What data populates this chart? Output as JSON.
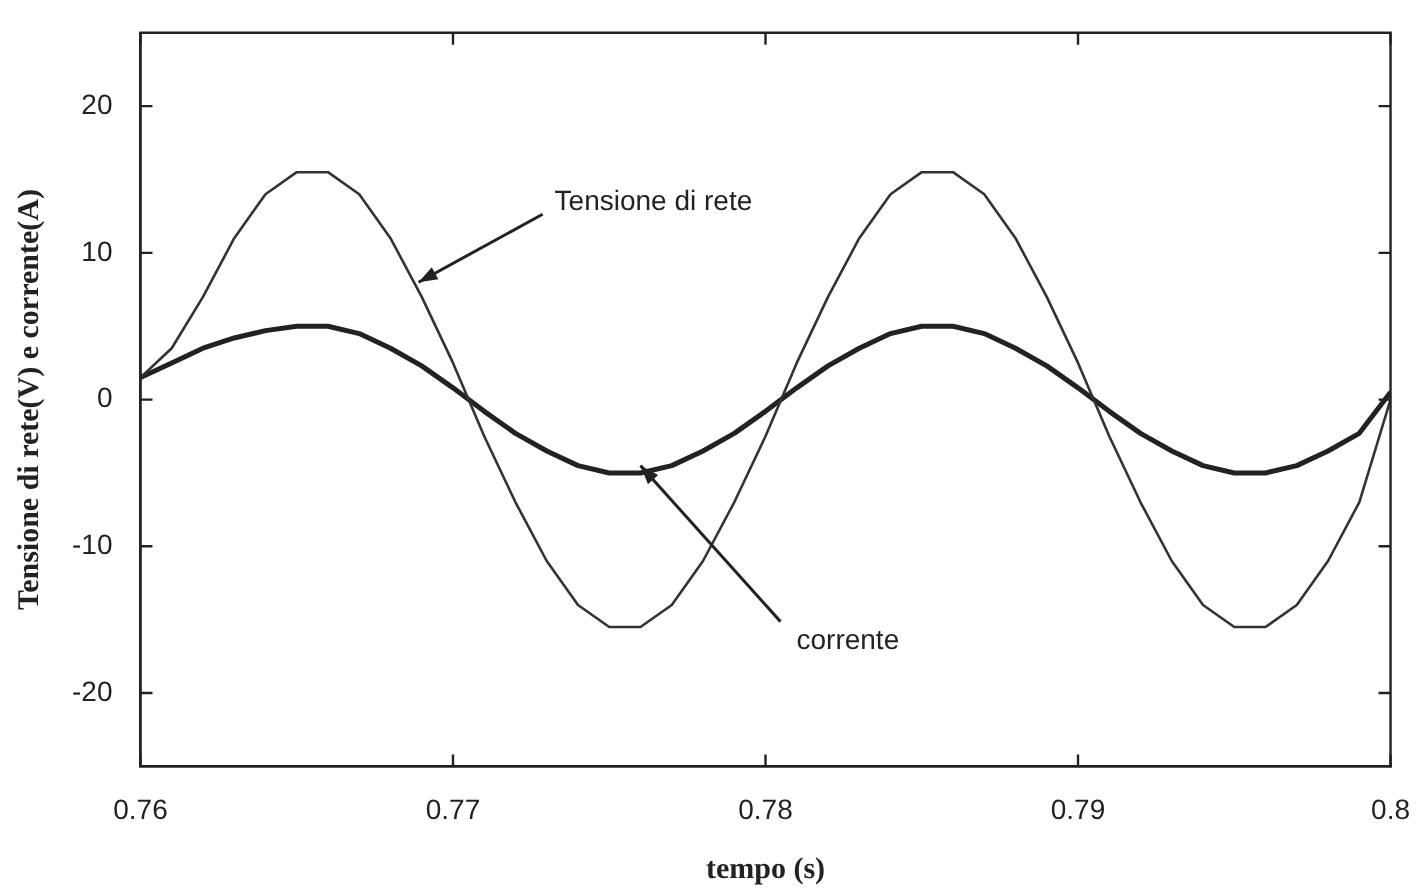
{
  "chart_data": {
    "type": "line",
    "xlabel": "tempo (s)",
    "ylabel": "Tensione di rete(V) e corrente(A)",
    "xlim": [
      0.76,
      0.8
    ],
    "xticks": [
      {
        "value": 0.76,
        "label": "0.76"
      },
      {
        "value": 0.77,
        "label": "0.77"
      },
      {
        "value": 0.78,
        "label": "0.78"
      },
      {
        "value": 0.79,
        "label": "0.79"
      },
      {
        "value": 0.8,
        "label": "0.8"
      }
    ],
    "ylim": [
      -25,
      25
    ],
    "yticks": [
      -20,
      -10,
      0,
      10,
      20
    ],
    "grid": false,
    "legend": false,
    "marker": "none",
    "line_style": "solid",
    "x": [
      0.76,
      0.761,
      0.762,
      0.763,
      0.764,
      0.765,
      0.766,
      0.767,
      0.768,
      0.769,
      0.77,
      0.771,
      0.772,
      0.773,
      0.774,
      0.775,
      0.776,
      0.777,
      0.778,
      0.779,
      0.78,
      0.781,
      0.782,
      0.783,
      0.784,
      0.785,
      0.786,
      0.787,
      0.788,
      0.789,
      0.79,
      0.791,
      0.792,
      0.793,
      0.794,
      0.795,
      0.796,
      0.797,
      0.798,
      0.799,
      0.8
    ],
    "series": [
      {
        "color": "#333333",
        "values": [
          1.5,
          3.5,
          7,
          11,
          14,
          15.5,
          15.5,
          14,
          11,
          7,
          2.5,
          -2.5,
          -7,
          -11,
          -14,
          -15.5,
          -15.5,
          -14,
          -11,
          -7,
          -2.5,
          2.5,
          7,
          11,
          14,
          15.5,
          15.5,
          14,
          11,
          7,
          2.5,
          -2.5,
          -7,
          -11,
          -14,
          -15.5,
          -15.5,
          -14,
          -11,
          -7,
          0
        ]
      },
      {
        "color": "#222222",
        "values": [
          1.5,
          2.5,
          3.5,
          4.2,
          4.7,
          5,
          5,
          4.5,
          3.5,
          2.3,
          0.8,
          -0.8,
          -2.3,
          -3.5,
          -4.5,
          -5,
          -5,
          -4.5,
          -3.5,
          -2.3,
          -0.8,
          0.8,
          2.3,
          3.5,
          4.5,
          5,
          5,
          4.5,
          3.5,
          2.3,
          0.8,
          -0.8,
          -2.3,
          -3.5,
          -4.5,
          -5,
          -5,
          -4.5,
          -3.5,
          -2.3,
          0.5
        ]
      }
    ],
    "annotations": [
      {
        "text": "Tensione di rete",
        "x": 0.7689,
        "y": 8
      },
      {
        "text": "corrente",
        "x": 0.776,
        "y": -4.5
      }
    ]
  }
}
